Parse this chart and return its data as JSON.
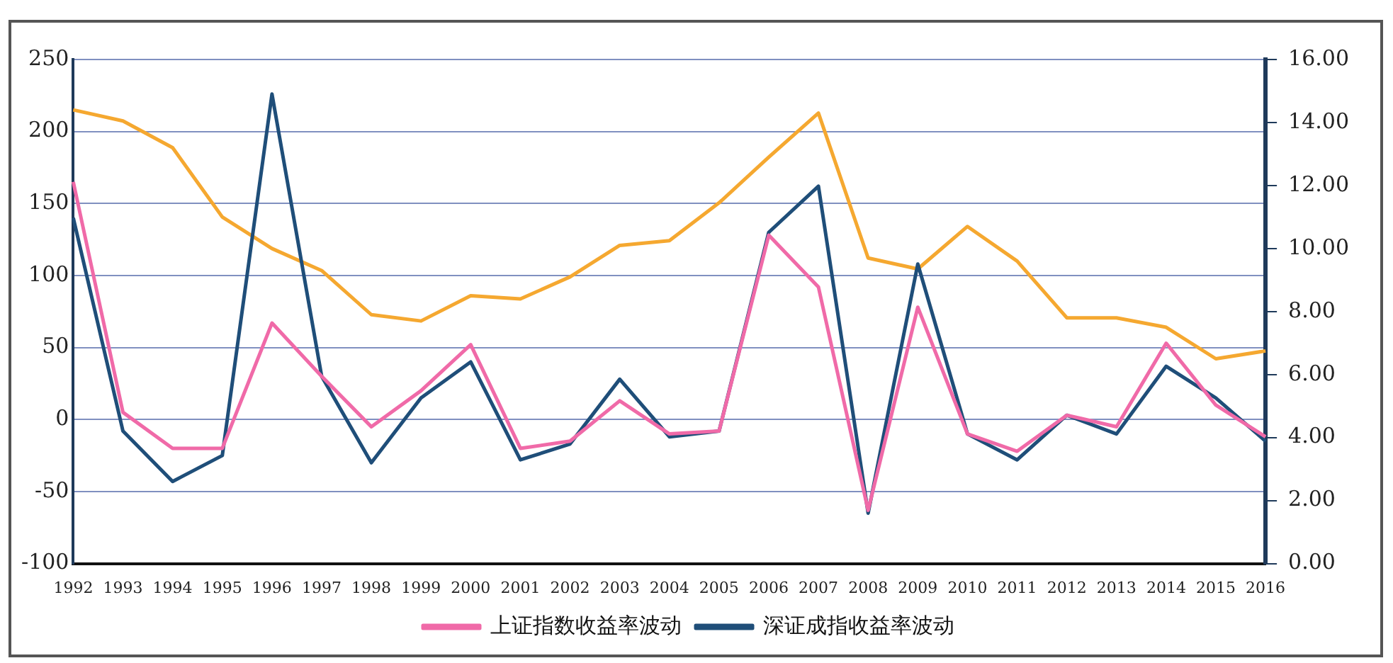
{
  "chart_data": {
    "type": "line",
    "categories": [
      "1992",
      "1993",
      "1994",
      "1995",
      "1996",
      "1997",
      "1998",
      "1999",
      "2000",
      "2001",
      "2002",
      "2003",
      "2004",
      "2005",
      "2006",
      "2007",
      "2008",
      "2009",
      "2010",
      "2011",
      "2012",
      "2013",
      "2014",
      "2015",
      "2016"
    ],
    "series": [
      {
        "name": "上证指数收益率波动",
        "color": "#f06aa8",
        "values": [
          165,
          5,
          -20,
          -20,
          67,
          30,
          -5,
          20,
          52,
          -20,
          -15,
          13,
          -10,
          -8,
          128,
          92,
          -63,
          78,
          -10,
          -22,
          3,
          -5,
          53,
          10,
          -12
        ]
      },
      {
        "name": "深证成指收益率波动",
        "color": "#1f4e79",
        "values": [
          140,
          -8,
          -43,
          -25,
          226,
          30,
          -30,
          15,
          40,
          -28,
          -17,
          28,
          -12,
          -8,
          130,
          162,
          -65,
          108,
          -10,
          -28,
          3,
          -10,
          37,
          15,
          -15
        ]
      },
      {
        "color": "#f5a830",
        "axis": "y2",
        "values": [
          14.4,
          14.05,
          13.2,
          11.0,
          10.0,
          9.3,
          7.9,
          7.7,
          8.5,
          8.4,
          9.1,
          10.1,
          10.25,
          11.45,
          12.9,
          14.3,
          9.7,
          9.35,
          10.7,
          9.6,
          7.8,
          7.8,
          7.5,
          6.5,
          6.75
        ]
      }
    ],
    "ylim": [
      -100,
      250
    ],
    "yticks": [
      -100,
      -50,
      0,
      50,
      100,
      150,
      200,
      250
    ],
    "y2lim": [
      0,
      16
    ],
    "y2ticks": [
      {
        "value": 0,
        "label": "0.00"
      },
      {
        "value": 2,
        "label": "2.00"
      },
      {
        "value": 4,
        "label": "4.00"
      },
      {
        "value": 6,
        "label": "6.00"
      },
      {
        "value": 8,
        "label": "8.00"
      },
      {
        "value": 10,
        "label": "10.00"
      },
      {
        "value": 12,
        "label": "12.00"
      },
      {
        "value": 14,
        "label": "14.00"
      },
      {
        "value": 16,
        "label": "16.00"
      }
    ],
    "grid": "y",
    "legend": "bottom",
    "marker": "none",
    "line_style": "solid"
  }
}
